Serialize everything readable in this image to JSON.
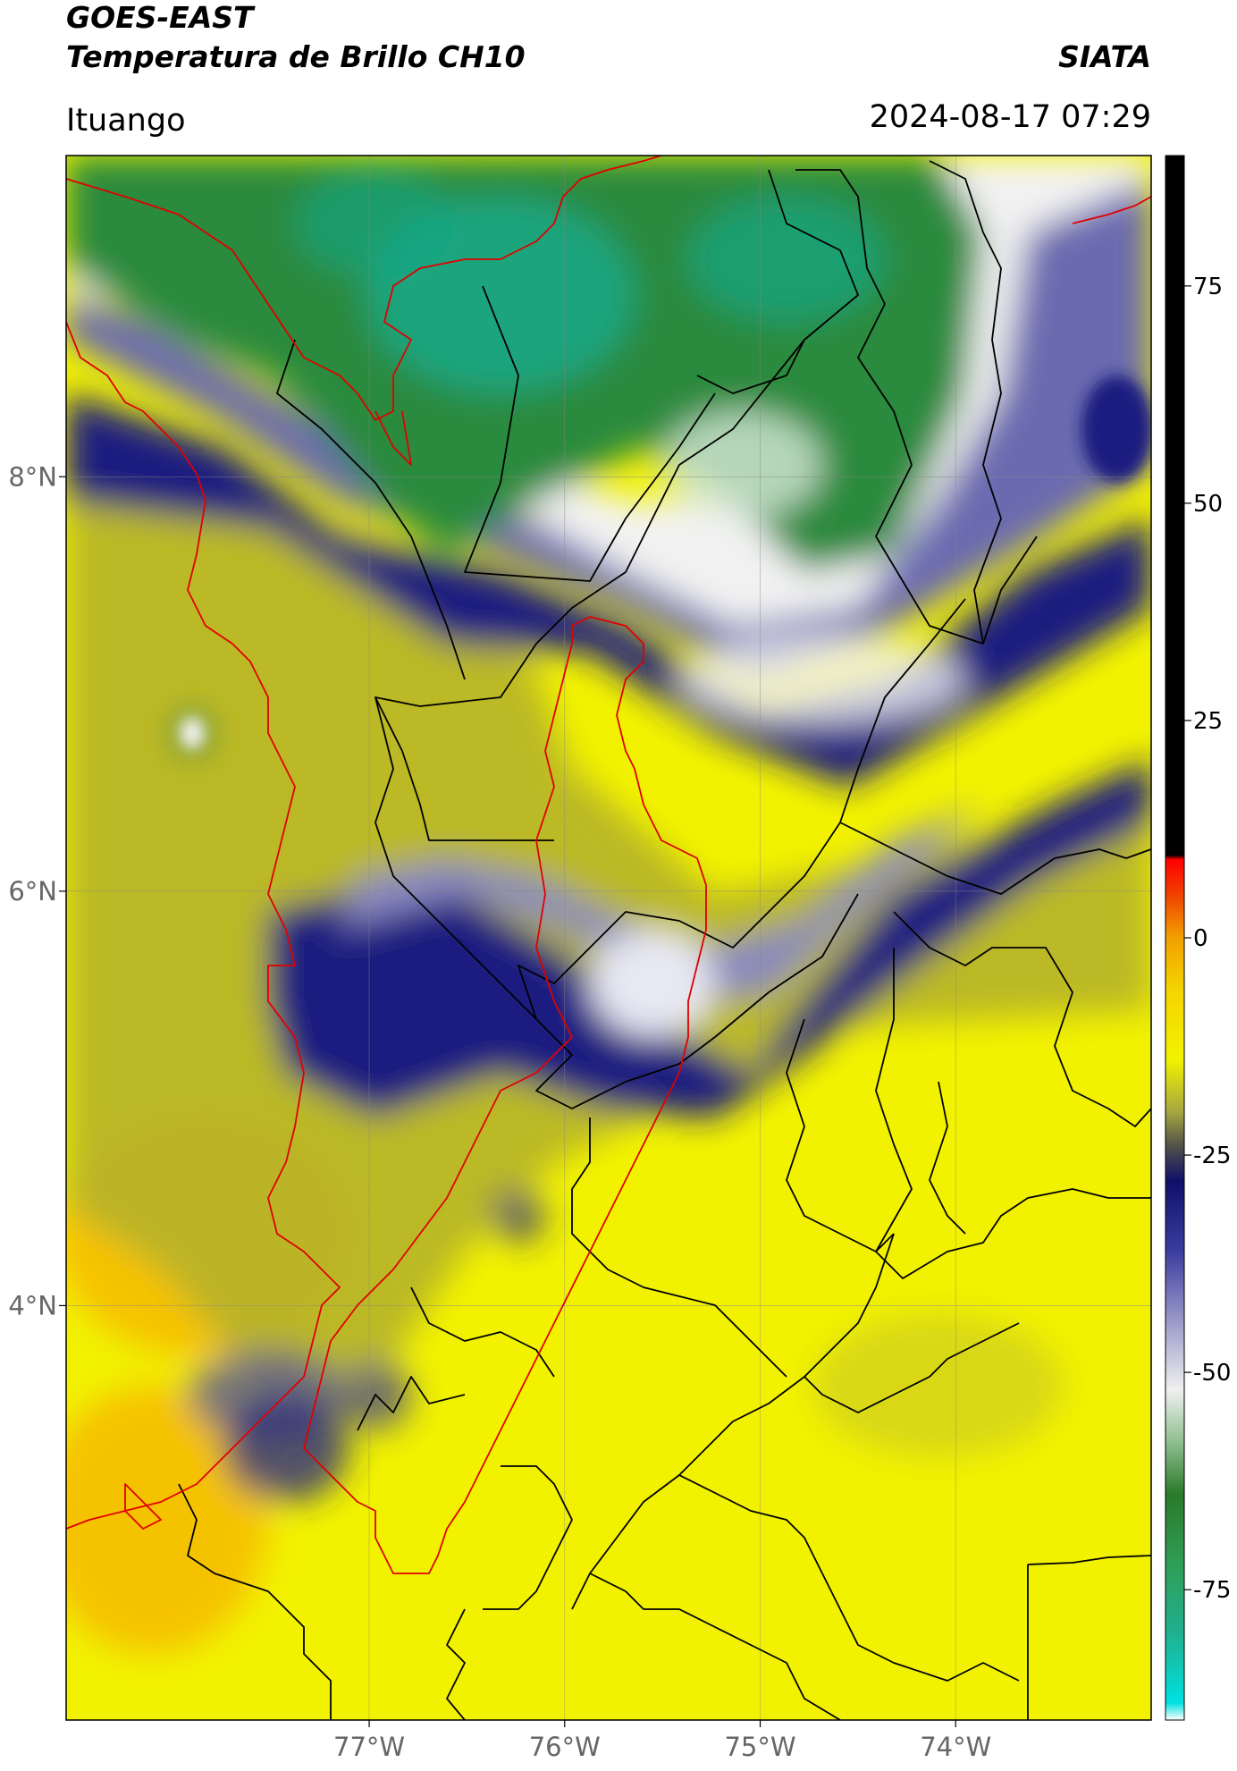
{
  "header": {
    "title_line1": "GOES-EAST",
    "title_line2": "Temperatura de Brillo CH10",
    "organization": "SIATA",
    "region": "Ituango",
    "datetime": "2024-08-17 07:29"
  },
  "map": {
    "lat_ticks": [
      {
        "value": 8,
        "label": "8°N"
      },
      {
        "value": 6,
        "label": "6°N"
      },
      {
        "value": 4,
        "label": "4°N"
      }
    ],
    "lon_ticks": [
      {
        "value": -77,
        "label": "77°W"
      },
      {
        "value": -76,
        "label": "76°W"
      },
      {
        "value": -75,
        "label": "75°W"
      },
      {
        "value": -74,
        "label": "74°W"
      }
    ],
    "lon_range": [
      -78.55,
      -73.0
    ],
    "lat_range": [
      2.0,
      9.55
    ],
    "colors": {
      "yellow": "#f2f200",
      "orange": "#f5c200",
      "olive": "#b5b32a",
      "navy": "#1b1b80",
      "slate": "#6b6bb0",
      "white": "#f2f2f2",
      "green": "#2a8a3c",
      "teal": "#18a888",
      "border_red": "#e00000",
      "border_black": "#000000"
    }
  },
  "colorbar": {
    "ticks": [
      {
        "value": 75,
        "label": "75"
      },
      {
        "value": 50,
        "label": "50"
      },
      {
        "value": 25,
        "label": "25"
      },
      {
        "value": 0,
        "label": "0"
      },
      {
        "value": -25,
        "label": "-25"
      },
      {
        "value": -50,
        "label": "-50"
      },
      {
        "value": -75,
        "label": "-75"
      }
    ],
    "range": [
      -90,
      90
    ],
    "stops": [
      {
        "value": -90,
        "color": "#ffffff"
      },
      {
        "value": -88,
        "color": "#00e0e0"
      },
      {
        "value": -80,
        "color": "#20b090"
      },
      {
        "value": -72,
        "color": "#2f9e55"
      },
      {
        "value": -64,
        "color": "#2a7a2a"
      },
      {
        "value": -58,
        "color": "#8fbf8f"
      },
      {
        "value": -52,
        "color": "#f0f0f0"
      },
      {
        "value": -44,
        "color": "#9898c8"
      },
      {
        "value": -36,
        "color": "#3c3ca0"
      },
      {
        "value": -28,
        "color": "#10106a"
      },
      {
        "value": -24,
        "color": "#50504a"
      },
      {
        "value": -20,
        "color": "#a6a640"
      },
      {
        "value": -14,
        "color": "#f2f200"
      },
      {
        "value": -6,
        "color": "#f4d400"
      },
      {
        "value": 0,
        "color": "#f2a000"
      },
      {
        "value": 5,
        "color": "#f04000"
      },
      {
        "value": 9,
        "color": "#ff0000"
      },
      {
        "value": 9.5,
        "color": "#000000"
      },
      {
        "value": 90,
        "color": "#000000"
      }
    ]
  }
}
